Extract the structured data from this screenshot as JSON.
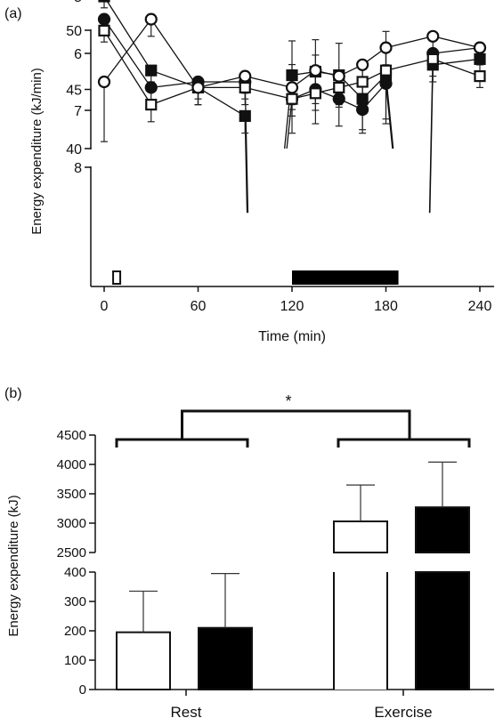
{
  "chart_data": [
    {
      "panel": "(a)",
      "type": "line",
      "xlabel": "Time (min)",
      "ylabel": "Energy expenditure (kJ/min)",
      "xlim": [
        0,
        240
      ],
      "x_ticks": [
        "0",
        "60",
        "120",
        "180",
        "240"
      ],
      "ylim_upper": [
        40,
        50
      ],
      "ylim_lower": [
        4,
        8
      ],
      "y_ticks_upper": [
        "40",
        "45",
        "50"
      ],
      "y_ticks_lower": [
        "5",
        "6",
        "7",
        "8"
      ],
      "axis_break": true,
      "grid": false,
      "legend": "none",
      "rest_periods": [
        {
          "x": 0,
          "y": 6.5,
          "err": 1.05,
          "marker": "open-circle"
        },
        {
          "x": 0,
          "y": 5.6,
          "err": 0.2,
          "marker": "open-square"
        },
        {
          "x": 0,
          "y": 5.4,
          "err": 0.2,
          "marker": "filled-circle"
        },
        {
          "x": 0,
          "y": 5.0,
          "err": 0.2,
          "marker": "filled-square"
        }
      ],
      "series": [
        {
          "marker": "filled-square",
          "x": [
            30,
            60,
            90,
            120,
            135,
            150,
            165,
            180,
            210,
            240
          ],
          "y": [
            6.3,
            6.6,
            7.1,
            46.2,
            46.5,
            46.2,
            44.2,
            46.2,
            6.2,
            6.1
          ],
          "err": [
            0.2,
            0.3,
            0.3,
            2.9,
            2.7,
            2.7,
            2.6,
            3.7,
            0.3,
            0.3
          ]
        },
        {
          "marker": "filled-circle",
          "x": [
            30,
            60,
            90,
            120,
            135,
            150,
            165,
            180,
            210,
            240
          ],
          "y": [
            6.6,
            6.5,
            6.5,
            44.2,
            45.0,
            44.2,
            43.3,
            45.5,
            6.0,
            5.9
          ],
          "err": [
            0.3,
            0.3,
            0.3,
            2.9,
            2.9,
            2.3,
            2.0,
            3.4,
            0.2,
            0.3
          ]
        },
        {
          "marker": "open-square",
          "x": [
            30,
            60,
            90,
            120,
            135,
            150,
            165,
            180,
            210,
            240
          ],
          "y": [
            6.9,
            6.6,
            6.6,
            6.8,
            6.7,
            6.6,
            6.5,
            6.3,
            6.1,
            6.4
          ],
          "err": [
            0.3,
            0.3,
            0.3,
            0.3,
            0.3,
            0.3,
            0.3,
            0.3,
            0.3,
            0.2
          ]
        },
        {
          "marker": "open-circle",
          "x": [
            30,
            60,
            90,
            120,
            135,
            150,
            165,
            180,
            210,
            240
          ],
          "y": [
            5.4,
            6.6,
            6.4,
            6.6,
            6.3,
            6.4,
            6.2,
            5.9,
            5.7,
            5.9
          ],
          "err": [
            0.3,
            0.3,
            0.3,
            0.3,
            0.3,
            0.3,
            0.3,
            0.3,
            0.3,
            0.3
          ]
        }
      ],
      "exercise_bar": {
        "start": 120,
        "end": 188
      },
      "meal_marker": {
        "x": 8
      }
    },
    {
      "panel": "(b)",
      "type": "bar",
      "ylabel": "Energy expenditure (kJ)",
      "categories": [
        "Rest",
        "Exercise"
      ],
      "ylim_lower": [
        0,
        400
      ],
      "ylim_upper": [
        2500,
        4500
      ],
      "y_ticks_lower": [
        "0",
        "100",
        "200",
        "300",
        "400"
      ],
      "y_ticks_upper": [
        "2500",
        "3000",
        "3500",
        "4000",
        "4500"
      ],
      "axis_break": true,
      "series": [
        {
          "fill": "open",
          "values": [
            195,
            3030
          ],
          "err": [
            140,
            620
          ]
        },
        {
          "fill": "filled",
          "values": [
            210,
            3270
          ],
          "err": [
            185,
            770
          ]
        }
      ],
      "significance_label": "*"
    }
  ]
}
